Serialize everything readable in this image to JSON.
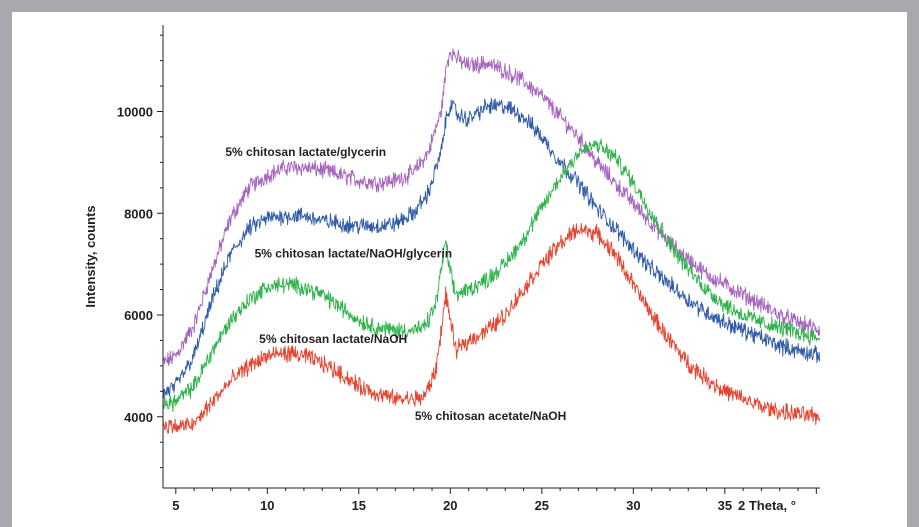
{
  "chart_data": {
    "type": "line",
    "title": "",
    "xlabel": "2 Theta, °",
    "ylabel": "Intensity, counts",
    "xlim": [
      4.3,
      40.2
    ],
    "ylim": [
      2600,
      11700
    ],
    "x_ticks": [
      5,
      10,
      15,
      20,
      25,
      30,
      35
    ],
    "x_tick_labels": [
      "5",
      "10",
      "15",
      "20",
      "25",
      "30",
      "35"
    ],
    "y_ticks": [
      4000,
      6000,
      8000,
      10000
    ],
    "y_tick_labels": [
      "4000",
      "6000",
      "8000",
      "10000"
    ],
    "grid": false,
    "legend": "none",
    "series": [
      {
        "name": "5% chitosan lactate/glycerin",
        "color": "#a563c0",
        "x": [
          4.3,
          5,
          6,
          7,
          8,
          9,
          10,
          11,
          12,
          13,
          14,
          15,
          16,
          17,
          18,
          18.8,
          19.5,
          19.8,
          20,
          20.5,
          21,
          22,
          23,
          24,
          25,
          26,
          27,
          28,
          29,
          30,
          31,
          32,
          33,
          34,
          35,
          36,
          37,
          38,
          39,
          40.2
        ],
        "y": [
          5050,
          5200,
          5800,
          6900,
          7900,
          8500,
          8750,
          8900,
          8900,
          8850,
          8750,
          8650,
          8600,
          8650,
          8800,
          9200,
          10000,
          10900,
          11200,
          11000,
          10900,
          10950,
          10800,
          10600,
          10300,
          9900,
          9500,
          9000,
          8600,
          8200,
          7800,
          7400,
          7100,
          6800,
          6600,
          6400,
          6200,
          6000,
          5850,
          5700
        ]
      },
      {
        "name": "5% chitosan lactate/NaOH/glycerin",
        "color": "#2e5aa8",
        "x": [
          4.3,
          5,
          6,
          7,
          8,
          9,
          10,
          11,
          12,
          13,
          14,
          15,
          16,
          17,
          18,
          18.8,
          19.5,
          19.8,
          20,
          20.5,
          21,
          22,
          23,
          24,
          25,
          26,
          27,
          28,
          29,
          30,
          31,
          32,
          33,
          34,
          35,
          36,
          37,
          38,
          39,
          40.2
        ],
        "y": [
          4450,
          4600,
          5200,
          6300,
          7200,
          7700,
          7900,
          7950,
          7950,
          7850,
          7800,
          7750,
          7750,
          7800,
          8000,
          8400,
          9200,
          9900,
          10150,
          9900,
          9850,
          10100,
          10100,
          9900,
          9500,
          9000,
          8600,
          8100,
          7700,
          7300,
          6900,
          6600,
          6300,
          6050,
          5850,
          5700,
          5550,
          5400,
          5300,
          5200
        ]
      },
      {
        "name": "5% chitosan lactate/NaOH",
        "color": "#2db34a",
        "x": [
          4.3,
          5,
          6,
          7,
          8,
          9,
          10,
          11,
          12,
          13,
          14,
          15,
          16,
          17,
          18,
          18.6,
          19.2,
          19.5,
          19.75,
          20,
          20.3,
          21,
          22,
          23,
          24,
          25,
          26,
          27,
          28,
          29,
          30,
          31,
          32,
          33,
          34,
          35,
          36,
          37,
          38,
          39,
          40.2
        ],
        "y": [
          4250,
          4300,
          4600,
          5300,
          5900,
          6300,
          6550,
          6600,
          6550,
          6400,
          6150,
          5900,
          5750,
          5700,
          5700,
          5750,
          6200,
          6900,
          7450,
          6800,
          6400,
          6500,
          6700,
          7000,
          7500,
          8100,
          8700,
          9200,
          9350,
          9100,
          8600,
          8000,
          7400,
          6900,
          6500,
          6200,
          6000,
          5850,
          5750,
          5650,
          5550
        ]
      },
      {
        "name": "5% chitosan acetate/NaOH",
        "color": "#e8412c",
        "x": [
          4.3,
          5,
          6,
          7,
          8,
          9,
          10,
          11,
          12,
          13,
          14,
          15,
          16,
          17,
          18,
          18.6,
          19.2,
          19.5,
          19.75,
          20,
          20.3,
          21,
          22,
          23,
          24,
          25,
          26,
          27,
          28,
          29,
          30,
          31,
          32,
          33,
          34,
          35,
          36,
          37,
          38,
          39,
          40.2
        ],
        "y": [
          3850,
          3800,
          3850,
          4300,
          4700,
          5000,
          5200,
          5250,
          5200,
          5050,
          4850,
          4600,
          4450,
          4350,
          4350,
          4400,
          4900,
          5700,
          6400,
          5900,
          5300,
          5500,
          5700,
          6000,
          6500,
          7000,
          7400,
          7700,
          7600,
          7200,
          6600,
          6000,
          5500,
          5050,
          4750,
          4500,
          4350,
          4200,
          4100,
          4050,
          4000
        ]
      }
    ],
    "annotations": [
      {
        "text": "5% chitosan lactate/glycerin",
        "x": 12.1,
        "y": 9130
      },
      {
        "text": "5% chitosan lactate/NaOH/glycerin",
        "x": 14.7,
        "y": 7130
      },
      {
        "text": "5% chitosan lactate/NaOH",
        "x": 13.6,
        "y": 5450
      },
      {
        "text": "5% chitosan acetate/NaOH",
        "x": 22.2,
        "y": 3940
      }
    ]
  }
}
